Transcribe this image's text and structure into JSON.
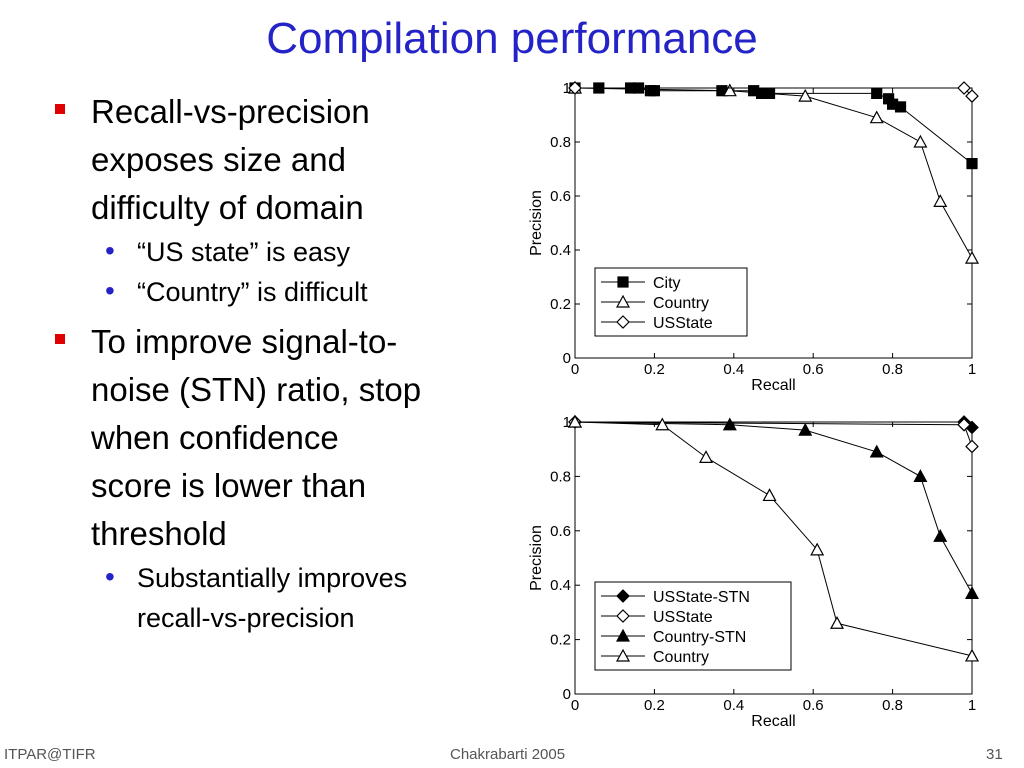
{
  "slide": {
    "title": "Compilation performance",
    "bullets": [
      {
        "lines": [
          "Recall-vs-precision",
          "exposes size and",
          "difficulty of domain"
        ],
        "subs": [
          {
            "lines": [
              "“US state” is easy"
            ]
          },
          {
            "lines": [
              "“Country” is difficult"
            ]
          }
        ]
      },
      {
        "lines": [
          "To improve signal-to-",
          "noise (STN) ratio, stop",
          "when confidence",
          "score is lower than",
          "threshold"
        ],
        "subs": [
          {
            "lines": [
              "Substantially improves",
              "recall-vs-precision"
            ]
          }
        ]
      }
    ],
    "footer": {
      "left": "ITPAR@TIFR",
      "center": "Chakrabarti 2005",
      "right": "31"
    }
  },
  "chart_data": [
    {
      "type": "line",
      "xlabel": "Recall",
      "ylabel": "Precision",
      "xlim": [
        0,
        1
      ],
      "ylim": [
        0,
        1
      ],
      "xticks": [
        "0",
        "0.2",
        "0.4",
        "0.6",
        "0.8",
        "1"
      ],
      "yticks": [
        "0",
        "0.2",
        "0.4",
        "0.6",
        "0.8",
        "1"
      ],
      "legend_position": "bottom-left",
      "series": [
        {
          "name": "City",
          "marker": "square-filled",
          "x": [
            0,
            0.06,
            0.14,
            0.16,
            0.19,
            0.2,
            0.37,
            0.45,
            0.47,
            0.49,
            0.76,
            0.79,
            0.8,
            0.82,
            1.0
          ],
          "y": [
            1.0,
            1.0,
            1.0,
            1.0,
            0.99,
            0.99,
            0.99,
            0.99,
            0.98,
            0.98,
            0.98,
            0.96,
            0.94,
            0.93,
            0.72
          ]
        },
        {
          "name": "Country",
          "marker": "triangle-open",
          "x": [
            0,
            0.39,
            0.58,
            0.76,
            0.87,
            0.92,
            1.0
          ],
          "y": [
            1.0,
            0.99,
            0.97,
            0.89,
            0.8,
            0.58,
            0.37
          ]
        },
        {
          "name": "USState",
          "marker": "diamond-open",
          "x": [
            0,
            0.98,
            1.0
          ],
          "y": [
            1.0,
            1.0,
            0.97
          ]
        }
      ]
    },
    {
      "type": "line",
      "xlabel": "Recall",
      "ylabel": "Precision",
      "xlim": [
        0,
        1
      ],
      "ylim": [
        0,
        1
      ],
      "xticks": [
        "0",
        "0.2",
        "0.4",
        "0.6",
        "0.8",
        "1"
      ],
      "yticks": [
        "0",
        "0.2",
        "0.4",
        "0.6",
        "0.8",
        "1"
      ],
      "legend_position": "bottom-left",
      "series": [
        {
          "name": "USState-STN",
          "marker": "diamond-filled",
          "x": [
            0,
            0.98,
            1.0
          ],
          "y": [
            1.0,
            1.0,
            0.98
          ]
        },
        {
          "name": "USState",
          "marker": "diamond-open",
          "x": [
            0,
            0.98,
            1.0
          ],
          "y": [
            1.0,
            0.99,
            0.91
          ]
        },
        {
          "name": "Country-STN",
          "marker": "triangle-filled",
          "x": [
            0,
            0.39,
            0.58,
            0.76,
            0.87,
            0.92,
            1.0
          ],
          "y": [
            1.0,
            0.99,
            0.97,
            0.89,
            0.8,
            0.58,
            0.37
          ]
        },
        {
          "name": "Country",
          "marker": "triangle-open",
          "x": [
            0,
            0.22,
            0.33,
            0.49,
            0.61,
            0.66,
            1.0
          ],
          "y": [
            1.0,
            0.99,
            0.87,
            0.73,
            0.53,
            0.26,
            0.14
          ]
        }
      ]
    }
  ]
}
